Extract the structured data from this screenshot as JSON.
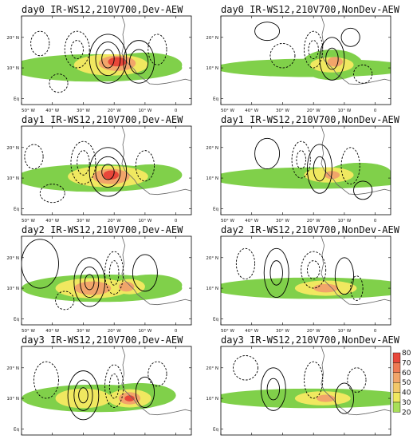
{
  "panels": [
    {
      "title": "day0 IR-WS12,210V700,Dev-AEW"
    },
    {
      "title": "day0 IR-WS12,210V700,NonDev-AEW"
    },
    {
      "title": "day1 IR-WS12,210V700,Dev-AEW"
    },
    {
      "title": "day1 IR-WS12,210V700,NonDev-AEW"
    },
    {
      "title": "day2 IR-WS12,210V700,Dev-AEW"
    },
    {
      "title": "day2 IR-WS12,210V700,NonDev-AEW"
    },
    {
      "title": "day3 IR-WS12,210V700,Dev-AEW"
    },
    {
      "title": "day3 IR-WS12,210V700,NonDev-AEW"
    }
  ],
  "axes": {
    "lon_ticks": [
      "50° W",
      "40° W",
      "30° W",
      "20° W",
      "10° W",
      "0"
    ],
    "lat_ticks": [
      "20° N",
      "10° N",
      "Eq"
    ]
  },
  "colorbar": {
    "levels": [
      "80",
      "70",
      "60",
      "50",
      "40",
      "30",
      "20"
    ],
    "colors": [
      "#e8473a",
      "#ee7a54",
      "#f1a56a",
      "#f2c86a",
      "#f0e860",
      "#a8df58",
      "#7dcf45"
    ]
  },
  "colors": {
    "ir_light": "#80d04a",
    "ir_yellow": "#f0e860",
    "ir_orange": "#f1a56a",
    "ir_red": "#e8473a",
    "coast": "#666666",
    "contour": "#000000"
  }
}
